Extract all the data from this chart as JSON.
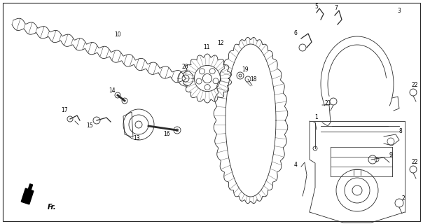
{
  "background_color": "#ffffff",
  "line_color": "#2a2a2a",
  "label_color": "#000000",
  "figsize": [
    6.04,
    3.2
  ],
  "dpi": 100
}
